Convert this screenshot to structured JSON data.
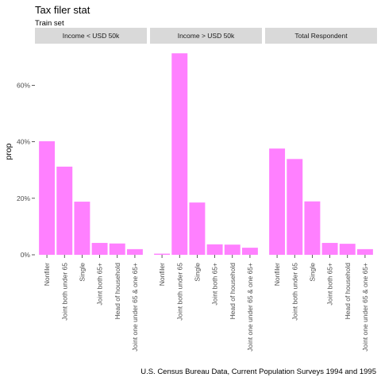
{
  "chart_data": {
    "type": "bar",
    "title": "Tax filer stat",
    "subtitle": "Train set",
    "ylabel": "prop",
    "caption": "U.S. Census Bureau Data, Current Population Surveys 1994 and 1995",
    "ylim": [
      0,
      0.75
    ],
    "yticks": [
      0,
      0.2,
      0.4,
      0.6
    ],
    "ytick_labels": [
      "0%",
      "20%",
      "40%",
      "60%"
    ],
    "bar_color": "#ff80ff",
    "strip_color": "#d9d9d9",
    "panel_background": "#ffffff",
    "grid": false,
    "categories": [
      "Nonfiler",
      "Joint both under 65",
      "Single",
      "Joint both 65+",
      "Head of household",
      "Joint one under 65 & one 65+"
    ],
    "facets": [
      {
        "label": "Income < USD 50k",
        "values": [
          0.402,
          0.312,
          0.188,
          0.042,
          0.04,
          0.02
        ]
      },
      {
        "label": "Income > USD 50k",
        "values": [
          0.004,
          0.713,
          0.185,
          0.037,
          0.036,
          0.025
        ]
      },
      {
        "label": "Total Respondent",
        "values": [
          0.376,
          0.339,
          0.189,
          0.042,
          0.039,
          0.02
        ]
      }
    ]
  }
}
